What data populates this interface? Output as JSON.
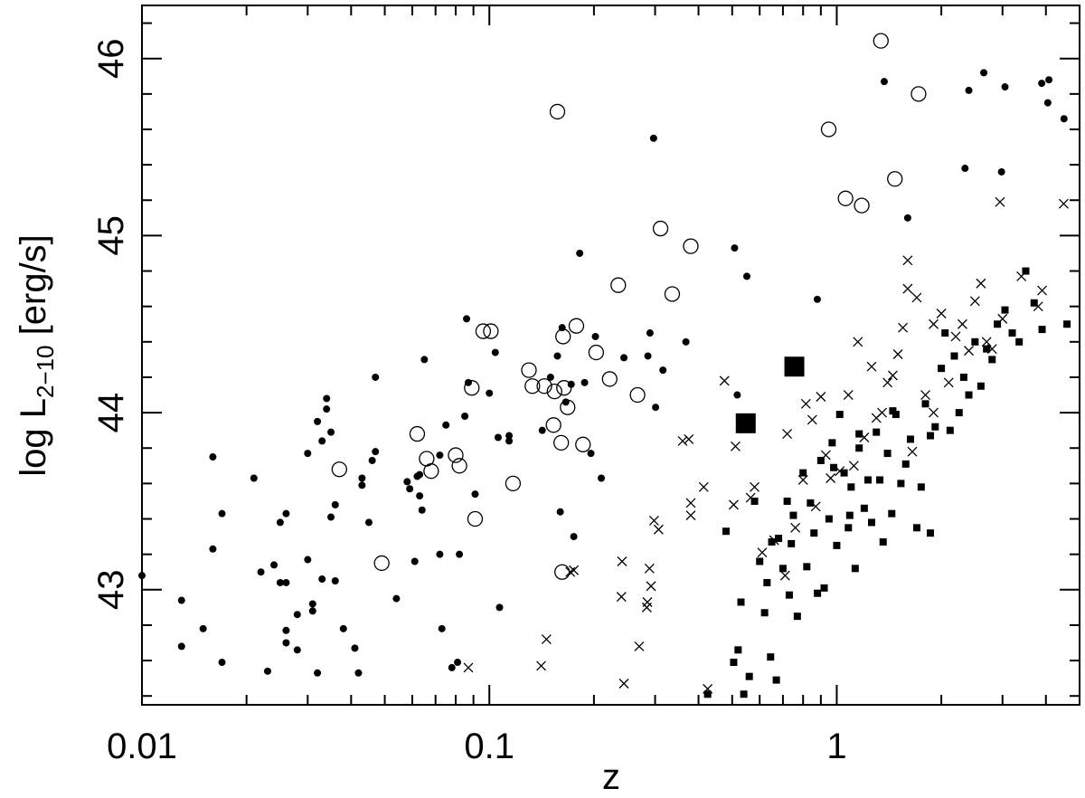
{
  "chart_data": {
    "type": "scatter",
    "xscale": "log",
    "xlim": [
      0.01,
      5.0
    ],
    "ylim": [
      42.35,
      46.3
    ],
    "xlabel": "z",
    "ylabel": "log L",
    "ylabel_sub": "2−10",
    "ylabel_unit": " [erg/s]",
    "xticks": [
      {
        "value": 0.01,
        "label": "0.01"
      },
      {
        "value": 0.1,
        "label": "0.1"
      },
      {
        "value": 1,
        "label": "1"
      }
    ],
    "yticks": [
      {
        "value": 43,
        "label": "43"
      },
      {
        "value": 44,
        "label": "44"
      },
      {
        "value": 45,
        "label": "45"
      },
      {
        "value": 46,
        "label": "46"
      }
    ],
    "grid": false,
    "series": [
      {
        "marker": "small-filled-circle",
        "points": [
          [
            0.01,
            43.08
          ],
          [
            0.013,
            42.94
          ],
          [
            0.013,
            42.68
          ],
          [
            0.015,
            42.78
          ],
          [
            0.016,
            43.75
          ],
          [
            0.016,
            43.23
          ],
          [
            0.017,
            43.43
          ],
          [
            0.017,
            42.59
          ],
          [
            0.021,
            43.63
          ],
          [
            0.022,
            43.1
          ],
          [
            0.023,
            42.54
          ],
          [
            0.024,
            43.14
          ],
          [
            0.025,
            43.38
          ],
          [
            0.025,
            43.04
          ],
          [
            0.026,
            43.43
          ],
          [
            0.026,
            43.04
          ],
          [
            0.026,
            42.77
          ],
          [
            0.026,
            42.7
          ],
          [
            0.028,
            42.86
          ],
          [
            0.028,
            42.66
          ],
          [
            0.03,
            43.77
          ],
          [
            0.03,
            43.17
          ],
          [
            0.031,
            42.92
          ],
          [
            0.031,
            42.88
          ],
          [
            0.032,
            43.95
          ],
          [
            0.032,
            42.53
          ],
          [
            0.033,
            43.84
          ],
          [
            0.033,
            43.06
          ],
          [
            0.034,
            44.08
          ],
          [
            0.034,
            44.02
          ],
          [
            0.035,
            43.89
          ],
          [
            0.035,
            43.41
          ],
          [
            0.036,
            43.48
          ],
          [
            0.036,
            43.05
          ],
          [
            0.038,
            42.78
          ],
          [
            0.041,
            42.67
          ],
          [
            0.042,
            42.53
          ],
          [
            0.043,
            43.63
          ],
          [
            0.043,
            43.59
          ],
          [
            0.045,
            43.38
          ],
          [
            0.046,
            43.73
          ],
          [
            0.047,
            44.2
          ],
          [
            0.047,
            43.78
          ],
          [
            0.054,
            42.95
          ],
          [
            0.058,
            43.61
          ],
          [
            0.059,
            43.57
          ],
          [
            0.061,
            43.16
          ],
          [
            0.062,
            43.64
          ],
          [
            0.063,
            43.65
          ],
          [
            0.063,
            43.53
          ],
          [
            0.064,
            43.45
          ],
          [
            0.065,
            44.3
          ],
          [
            0.072,
            43.76
          ],
          [
            0.072,
            43.2
          ],
          [
            0.073,
            42.78
          ],
          [
            0.075,
            43.93
          ],
          [
            0.078,
            42.56
          ],
          [
            0.081,
            42.59
          ],
          [
            0.082,
            43.2
          ],
          [
            0.085,
            43.98
          ],
          [
            0.086,
            44.53
          ],
          [
            0.087,
            44.17
          ],
          [
            0.091,
            43.54
          ],
          [
            0.1,
            44.11
          ],
          [
            0.104,
            44.34
          ],
          [
            0.106,
            43.86
          ],
          [
            0.107,
            42.9
          ],
          [
            0.114,
            43.84
          ],
          [
            0.114,
            43.87
          ],
          [
            0.142,
            43.9
          ],
          [
            0.15,
            44.2
          ],
          [
            0.157,
            44.32
          ],
          [
            0.16,
            43.44
          ],
          [
            0.162,
            44.48
          ],
          [
            0.166,
            44.06
          ],
          [
            0.172,
            44.16
          ],
          [
            0.175,
            43.3
          ],
          [
            0.182,
            44.9
          ],
          [
            0.188,
            44.17
          ],
          [
            0.196,
            43.77
          ],
          [
            0.202,
            44.43
          ],
          [
            0.21,
            43.63
          ],
          [
            0.244,
            44.31
          ],
          [
            0.286,
            44.32
          ],
          [
            0.29,
            44.45
          ],
          [
            0.297,
            45.55
          ],
          [
            0.301,
            44.03
          ],
          [
            0.316,
            44.24
          ],
          [
            0.368,
            44.4
          ],
          [
            0.508,
            44.93
          ],
          [
            0.517,
            44.1
          ],
          [
            0.551,
            44.77
          ],
          [
            0.879,
            44.64
          ],
          [
            1.37,
            45.87
          ],
          [
            1.6,
            45.1
          ],
          [
            2.34,
            45.38
          ],
          [
            2.4,
            45.82
          ],
          [
            2.65,
            45.92
          ],
          [
            2.98,
            45.36
          ],
          [
            3.05,
            45.84
          ],
          [
            3.89,
            45.86
          ],
          [
            4.05,
            45.75
          ],
          [
            4.08,
            45.88
          ],
          [
            4.51,
            45.66
          ]
        ]
      },
      {
        "marker": "open-circle",
        "points": [
          [
            0.037,
            43.68
          ],
          [
            0.049,
            43.15
          ],
          [
            0.062,
            43.88
          ],
          [
            0.066,
            43.74
          ],
          [
            0.068,
            43.67
          ],
          [
            0.08,
            43.76
          ],
          [
            0.082,
            43.7
          ],
          [
            0.089,
            44.14
          ],
          [
            0.091,
            43.4
          ],
          [
            0.096,
            44.46
          ],
          [
            0.101,
            44.46
          ],
          [
            0.117,
            43.6
          ],
          [
            0.13,
            44.24
          ],
          [
            0.133,
            44.15
          ],
          [
            0.144,
            44.15
          ],
          [
            0.153,
            43.93
          ],
          [
            0.154,
            44.12
          ],
          [
            0.157,
            45.7
          ],
          [
            0.161,
            43.83
          ],
          [
            0.162,
            43.1
          ],
          [
            0.163,
            44.43
          ],
          [
            0.164,
            44.14
          ],
          [
            0.168,
            44.03
          ],
          [
            0.178,
            44.49
          ],
          [
            0.186,
            43.82
          ],
          [
            0.203,
            44.34
          ],
          [
            0.222,
            44.19
          ],
          [
            0.235,
            44.72
          ],
          [
            0.267,
            44.1
          ],
          [
            0.311,
            45.04
          ],
          [
            0.336,
            44.67
          ],
          [
            0.38,
            44.94
          ],
          [
            0.948,
            45.6
          ],
          [
            1.06,
            45.21
          ],
          [
            1.18,
            45.17
          ],
          [
            1.34,
            46.1
          ],
          [
            1.72,
            45.8
          ],
          [
            1.47,
            45.32
          ]
        ]
      },
      {
        "marker": "cross",
        "points": [
          [
            0.087,
            42.56
          ],
          [
            0.141,
            42.57
          ],
          [
            0.146,
            42.72
          ],
          [
            0.175,
            43.11
          ],
          [
            0.171,
            43.1
          ],
          [
            0.24,
            42.96
          ],
          [
            0.241,
            43.16
          ],
          [
            0.244,
            42.47
          ],
          [
            0.27,
            42.68
          ],
          [
            0.285,
            42.93
          ],
          [
            0.284,
            42.9
          ],
          [
            0.289,
            43.12
          ],
          [
            0.292,
            43.02
          ],
          [
            0.298,
            43.39
          ],
          [
            0.307,
            43.34
          ],
          [
            0.38,
            43.49
          ],
          [
            0.414,
            43.58
          ],
          [
            0.425,
            42.44
          ],
          [
            0.475,
            44.18
          ],
          [
            0.505,
            43.48
          ],
          [
            0.511,
            43.81
          ],
          [
            0.565,
            43.52
          ],
          [
            0.58,
            43.58
          ],
          [
            0.61,
            43.21
          ],
          [
            0.66,
            43.28
          ],
          [
            0.71,
            43.08
          ],
          [
            0.72,
            43.88
          ],
          [
            0.76,
            43.35
          ],
          [
            0.8,
            43.62
          ],
          [
            0.815,
            44.05
          ],
          [
            0.85,
            43.96
          ],
          [
            0.87,
            43.47
          ],
          [
            0.9,
            44.09
          ],
          [
            0.93,
            43.76
          ],
          [
            0.96,
            43.63
          ],
          [
            1.02,
            43.67
          ],
          [
            1.08,
            44.1
          ],
          [
            1.12,
            43.7
          ],
          [
            1.15,
            44.4
          ],
          [
            1.2,
            43.86
          ],
          [
            1.26,
            44.26
          ],
          [
            1.3,
            43.97
          ],
          [
            1.35,
            44.0
          ],
          [
            1.4,
            44.17
          ],
          [
            1.45,
            44.21
          ],
          [
            1.5,
            44.33
          ],
          [
            1.6,
            44.7
          ],
          [
            1.65,
            43.78
          ],
          [
            1.7,
            44.65
          ],
          [
            1.8,
            44.1
          ],
          [
            1.9,
            44.0
          ],
          [
            2.0,
            44.56
          ],
          [
            2.1,
            44.17
          ],
          [
            2.2,
            44.43
          ],
          [
            2.3,
            44.5
          ],
          [
            2.4,
            44.35
          ],
          [
            2.5,
            44.63
          ],
          [
            2.6,
            44.73
          ],
          [
            2.7,
            44.4
          ],
          [
            2.8,
            44.36
          ],
          [
            3.0,
            44.53
          ],
          [
            3.4,
            44.77
          ],
          [
            3.9,
            44.69
          ],
          [
            3.8,
            44.6
          ],
          [
            4.5,
            45.18
          ],
          [
            1.6,
            44.86
          ],
          [
            1.55,
            44.48
          ],
          [
            1.9,
            44.5
          ],
          [
            2.95,
            45.19
          ],
          [
            0.375,
            43.85
          ],
          [
            0.36,
            43.84
          ],
          [
            0.38,
            43.42
          ]
        ]
      },
      {
        "marker": "small-filled-square",
        "points": [
          [
            0.425,
            42.41
          ],
          [
            0.48,
            43.33
          ],
          [
            0.505,
            42.59
          ],
          [
            0.52,
            42.66
          ],
          [
            0.53,
            42.93
          ],
          [
            0.54,
            42.41
          ],
          [
            0.56,
            42.51
          ],
          [
            0.58,
            43.5
          ],
          [
            0.6,
            43.16
          ],
          [
            0.62,
            42.87
          ],
          [
            0.63,
            43.04
          ],
          [
            0.645,
            42.62
          ],
          [
            0.65,
            43.27
          ],
          [
            0.67,
            42.49
          ],
          [
            0.68,
            43.29
          ],
          [
            0.7,
            43.12
          ],
          [
            0.72,
            43.5
          ],
          [
            0.73,
            42.97
          ],
          [
            0.74,
            43.26
          ],
          [
            0.75,
            43.42
          ],
          [
            0.77,
            42.85
          ],
          [
            0.8,
            43.66
          ],
          [
            0.82,
            43.13
          ],
          [
            0.84,
            43.49
          ],
          [
            0.86,
            43.32
          ],
          [
            0.88,
            42.98
          ],
          [
            0.9,
            43.73
          ],
          [
            0.92,
            43.01
          ],
          [
            0.95,
            43.4
          ],
          [
            0.97,
            43.83
          ],
          [
            1.0,
            43.25
          ],
          [
            1.02,
            43.99
          ],
          [
            1.05,
            43.66
          ],
          [
            1.08,
            43.35
          ],
          [
            1.1,
            43.58
          ],
          [
            1.13,
            43.12
          ],
          [
            1.16,
            43.8
          ],
          [
            1.2,
            43.46
          ],
          [
            1.23,
            43.62
          ],
          [
            1.26,
            43.38
          ],
          [
            1.3,
            43.89
          ],
          [
            1.33,
            43.62
          ],
          [
            1.36,
            43.27
          ],
          [
            1.4,
            43.77
          ],
          [
            1.44,
            43.43
          ],
          [
            1.48,
            43.99
          ],
          [
            1.53,
            43.6
          ],
          [
            1.58,
            43.71
          ],
          [
            1.63,
            43.85
          ],
          [
            1.7,
            43.35
          ],
          [
            1.75,
            43.58
          ],
          [
            1.8,
            44.05
          ],
          [
            1.86,
            43.87
          ],
          [
            1.92,
            43.92
          ],
          [
            2.0,
            44.25
          ],
          [
            2.05,
            44.45
          ],
          [
            2.12,
            43.9
          ],
          [
            2.18,
            44.32
          ],
          [
            2.25,
            44.0
          ],
          [
            2.32,
            44.2
          ],
          [
            2.4,
            44.1
          ],
          [
            2.5,
            44.4
          ],
          [
            2.6,
            44.15
          ],
          [
            2.7,
            44.36
          ],
          [
            2.8,
            44.3
          ],
          [
            2.9,
            44.5
          ],
          [
            3.05,
            44.58
          ],
          [
            3.2,
            44.45
          ],
          [
            3.35,
            44.4
          ],
          [
            3.5,
            44.8
          ],
          [
            3.7,
            44.62
          ],
          [
            3.9,
            44.47
          ],
          [
            4.6,
            44.5
          ],
          [
            1.86,
            43.32
          ],
          [
            1.45,
            44.01
          ],
          [
            1.16,
            43.88
          ],
          [
            1.09,
            43.42
          ],
          [
            0.98,
            43.69
          ]
        ]
      },
      {
        "marker": "large-filled-square",
        "points": [
          [
            0.547,
            43.94
          ],
          [
            0.755,
            44.26
          ]
        ]
      }
    ]
  }
}
